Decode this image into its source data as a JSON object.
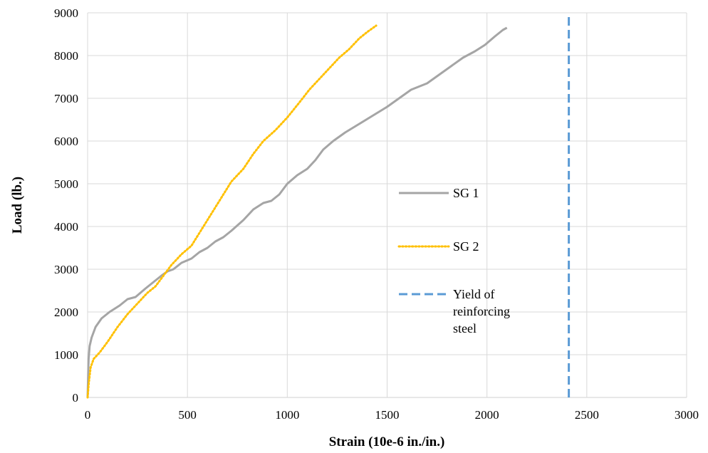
{
  "chart_data": {
    "type": "line",
    "title": "",
    "xlabel": "Strain (10e-6 in./in.)",
    "ylabel": "Load (lb.)",
    "xlim": [
      0,
      3000
    ],
    "ylim": [
      0,
      9000
    ],
    "xticks": [
      "0",
      "500",
      "1000",
      "1500",
      "2000",
      "2500",
      "3000"
    ],
    "yticks": [
      "0",
      "1000",
      "2000",
      "3000",
      "4000",
      "5000",
      "6000",
      "7000",
      "8000",
      "9000"
    ],
    "grid": true,
    "legend_position": "right",
    "series": [
      {
        "name": "SG 1",
        "style": "solid",
        "color": "#a5a5a5",
        "x": [
          0,
          2,
          5,
          10,
          20,
          40,
          70,
          110,
          160,
          200,
          240,
          290,
          330,
          370,
          400,
          430,
          470,
          520,
          560,
          600,
          640,
          680,
          720,
          780,
          830,
          880,
          920,
          960,
          1000,
          1050,
          1100,
          1140,
          1180,
          1230,
          1290,
          1360,
          1430,
          1500,
          1560,
          1620,
          1700,
          1760,
          1820,
          1880,
          1940,
          1990,
          2040,
          2080,
          2100
        ],
        "y": [
          0,
          400,
          900,
          1200,
          1400,
          1650,
          1850,
          2000,
          2150,
          2300,
          2350,
          2550,
          2700,
          2850,
          2950,
          3000,
          3150,
          3250,
          3400,
          3500,
          3650,
          3750,
          3900,
          4150,
          4400,
          4550,
          4600,
          4750,
          5000,
          5200,
          5350,
          5550,
          5800,
          6000,
          6200,
          6400,
          6600,
          6800,
          7000,
          7200,
          7350,
          7550,
          7750,
          7950,
          8100,
          8250,
          8450,
          8600,
          8650
        ]
      },
      {
        "name": "SG 2",
        "style": "dotted",
        "color": "#ffc000",
        "x": [
          0,
          5,
          15,
          30,
          60,
          100,
          150,
          200,
          250,
          300,
          340,
          380,
          420,
          470,
          520,
          560,
          600,
          640,
          680,
          720,
          780,
          830,
          880,
          940,
          1000,
          1060,
          1110,
          1160,
          1210,
          1260,
          1310,
          1360,
          1400,
          1430,
          1445
        ],
        "y": [
          0,
          300,
          700,
          900,
          1050,
          1300,
          1650,
          1950,
          2200,
          2450,
          2600,
          2850,
          3100,
          3350,
          3550,
          3850,
          4150,
          4450,
          4750,
          5050,
          5350,
          5700,
          6000,
          6250,
          6550,
          6900,
          7200,
          7450,
          7700,
          7950,
          8150,
          8400,
          8550,
          8650,
          8700
        ]
      },
      {
        "name": "Yield of reinforcing steel",
        "legend_lines": [
          "Yield of",
          "reinforcing",
          "steel"
        ],
        "style": "dashed",
        "color": "#5b9bd5",
        "x": [
          2410,
          2410
        ],
        "y": [
          0,
          9000
        ]
      }
    ]
  }
}
